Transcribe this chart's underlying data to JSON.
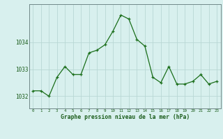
{
  "x": [
    0,
    1,
    2,
    3,
    4,
    5,
    6,
    7,
    8,
    9,
    10,
    11,
    12,
    13,
    14,
    15,
    16,
    17,
    18,
    19,
    20,
    21,
    22,
    23
  ],
  "y": [
    1032.2,
    1032.2,
    1032.0,
    1032.7,
    1033.1,
    1032.8,
    1032.8,
    1033.6,
    1033.7,
    1033.9,
    1034.4,
    1035.0,
    1034.85,
    1034.1,
    1033.85,
    1032.7,
    1032.5,
    1033.1,
    1032.45,
    1032.45,
    1032.55,
    1032.8,
    1032.45,
    1032.55
  ],
  "line_color": "#1a6e1a",
  "marker_color": "#1a6e1a",
  "bg_color": "#d8f0ee",
  "grid_color": "#b8d8d4",
  "title": "Graphe pression niveau de la mer (hPa)",
  "title_color": "#1a5c1a",
  "ylabel_values": [
    1032,
    1033,
    1034
  ],
  "ylim": [
    1031.55,
    1035.4
  ],
  "xlim": [
    -0.5,
    23.5
  ],
  "border_color": "#708888"
}
